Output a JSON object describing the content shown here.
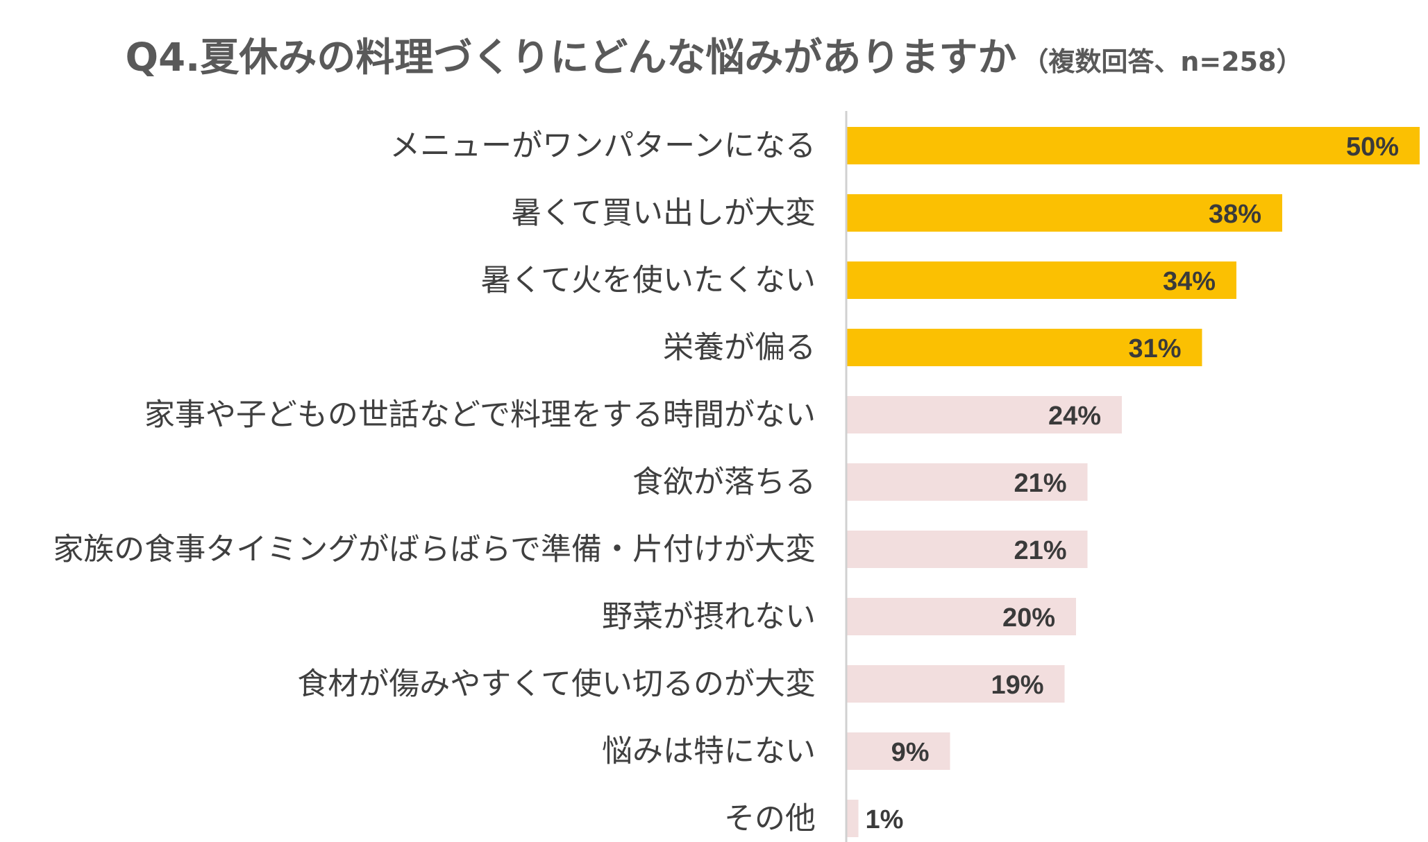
{
  "title": {
    "main": "Q4.夏休みの料理づくりにどんな悩みがありますか",
    "sub": "（複数回答、n=258）"
  },
  "colors": {
    "highlight": "#FBC002",
    "normal": "#F2DEDE",
    "axis": "#D0D0D0",
    "category_text": "#3F3F3F",
    "value_text": "#3A3A3A"
  },
  "chart_data": {
    "type": "bar",
    "orientation": "horizontal",
    "title": "Q4.夏休みの料理づくりにどんな悩みがありますか（複数回答、n=258）",
    "categories": [
      "メニューがワンパターンになる",
      "暑くて買い出しが大変",
      "暑くて火を使いたくない",
      "栄養が偏る",
      "家事や子どもの世話などで料理をする時間がない",
      "食欲が落ちる",
      "家族の食事タイミングがばらばらで準備・片付けが大変",
      "野菜が摂れない",
      "食材が傷みやすくて使い切るのが大変",
      "悩みは特にない",
      "その他"
    ],
    "values": [
      50,
      38,
      34,
      31,
      24,
      21,
      21,
      20,
      19,
      9,
      1
    ],
    "value_labels": [
      "50%",
      "38%",
      "34%",
      "31%",
      "24%",
      "21%",
      "21%",
      "20%",
      "19%",
      "9%",
      "1%"
    ],
    "unit": "%",
    "highlighted_count": 4,
    "xlim": [
      0,
      50
    ],
    "grid": false,
    "legend": "none"
  }
}
